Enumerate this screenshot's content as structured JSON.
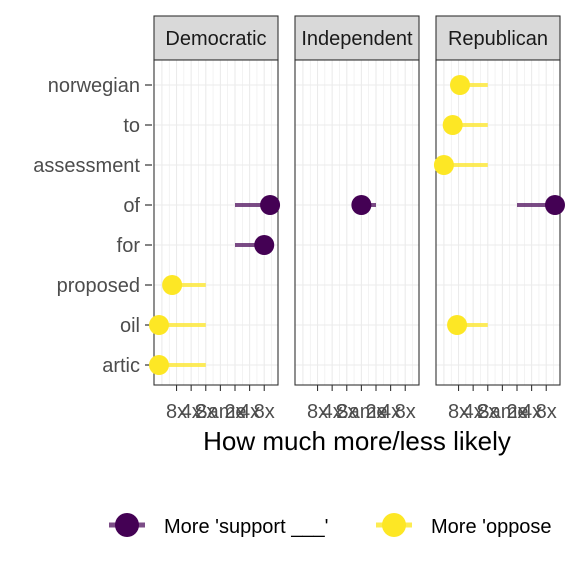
{
  "chart_data": {
    "type": "lollipop",
    "xlabel": "How much more/less likely",
    "tick_labels": [
      "8x",
      "4x",
      "2x",
      "Same",
      "2x",
      "4x",
      "8x"
    ],
    "tick_values": [
      -3,
      -2,
      -1,
      0,
      1,
      2,
      3
    ],
    "xlim": [
      -4.2,
      3.6
    ],
    "categories": [
      "norwegian",
      "to",
      "assessment",
      "of",
      "for",
      "proposed",
      "oil",
      "artic"
    ],
    "panels": [
      {
        "name": "Democratic",
        "points": [
          {
            "term": "of",
            "value": 3.4,
            "direction": "support"
          },
          {
            "term": "for",
            "value": 3.0,
            "direction": "support"
          },
          {
            "term": "proposed",
            "value": -3.3,
            "direction": "oppose"
          },
          {
            "term": "oil",
            "value": -4.2,
            "direction": "oppose"
          },
          {
            "term": "artic",
            "value": -4.2,
            "direction": "oppose"
          }
        ]
      },
      {
        "name": "Independent",
        "points": [
          {
            "term": "of",
            "value": 0.0,
            "direction": "support"
          }
        ]
      },
      {
        "name": "Republican",
        "points": [
          {
            "term": "norwegian",
            "value": -2.9,
            "direction": "oppose"
          },
          {
            "term": "to",
            "value": -3.4,
            "direction": "oppose"
          },
          {
            "term": "assessment",
            "value": -4.0,
            "direction": "oppose"
          },
          {
            "term": "of",
            "value": 3.6,
            "direction": "support"
          },
          {
            "term": "oil",
            "value": -3.1,
            "direction": "oppose"
          }
        ]
      }
    ],
    "legend": [
      {
        "key": "support",
        "label": "More 'support ___'"
      },
      {
        "key": "oppose",
        "label": "More 'oppose"
      }
    ],
    "legend_position": "bottom",
    "colors": {
      "support": "#440154",
      "oppose": "#fde725",
      "grid": "#ebebeb",
      "strip_fill": "#d9d9d9",
      "panel_border": "#333333"
    },
    "grid": true
  }
}
